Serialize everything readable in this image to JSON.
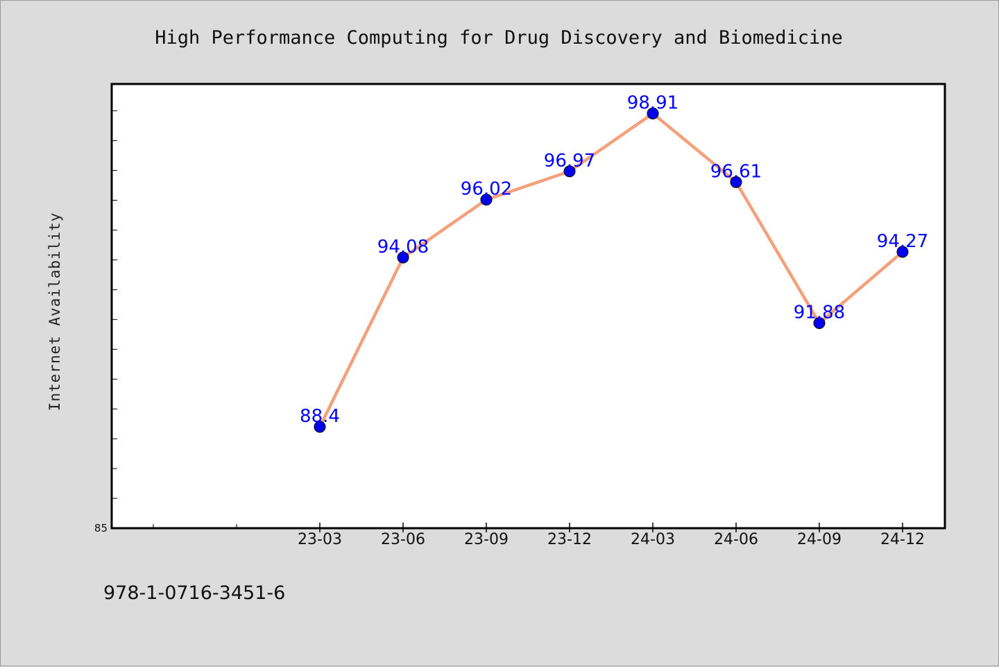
{
  "chart_data": {
    "type": "line",
    "title": "High Performance Computing for Drug Discovery and Biomedicine",
    "xlabel": "",
    "ylabel": "Internet Availability",
    "categories": [
      "23-03",
      "23-06",
      "23-09",
      "23-12",
      "24-03",
      "24-06",
      "24-09",
      "24-12"
    ],
    "series": [
      {
        "values": [
          88.4,
          94.08,
          96.02,
          96.97,
          98.91,
          96.61,
          91.88,
          94.27
        ],
        "labels": [
          "88.4",
          "94.08",
          "96.02",
          "96.97",
          "98.91",
          "96.61",
          "91.88",
          "94.27"
        ]
      }
    ],
    "ylim": [
      85,
      99.9
    ],
    "y_tick_labels": [
      "85"
    ],
    "grid": false,
    "legend": "none",
    "colors": {
      "line": "#f4a07a",
      "marker": "#0000ee",
      "data_label": "#0000ff",
      "plot_background": "#ffffff",
      "page_background": "#dcdcdc"
    }
  },
  "footer": {
    "isbn": "978-1-0716-3451-6"
  }
}
